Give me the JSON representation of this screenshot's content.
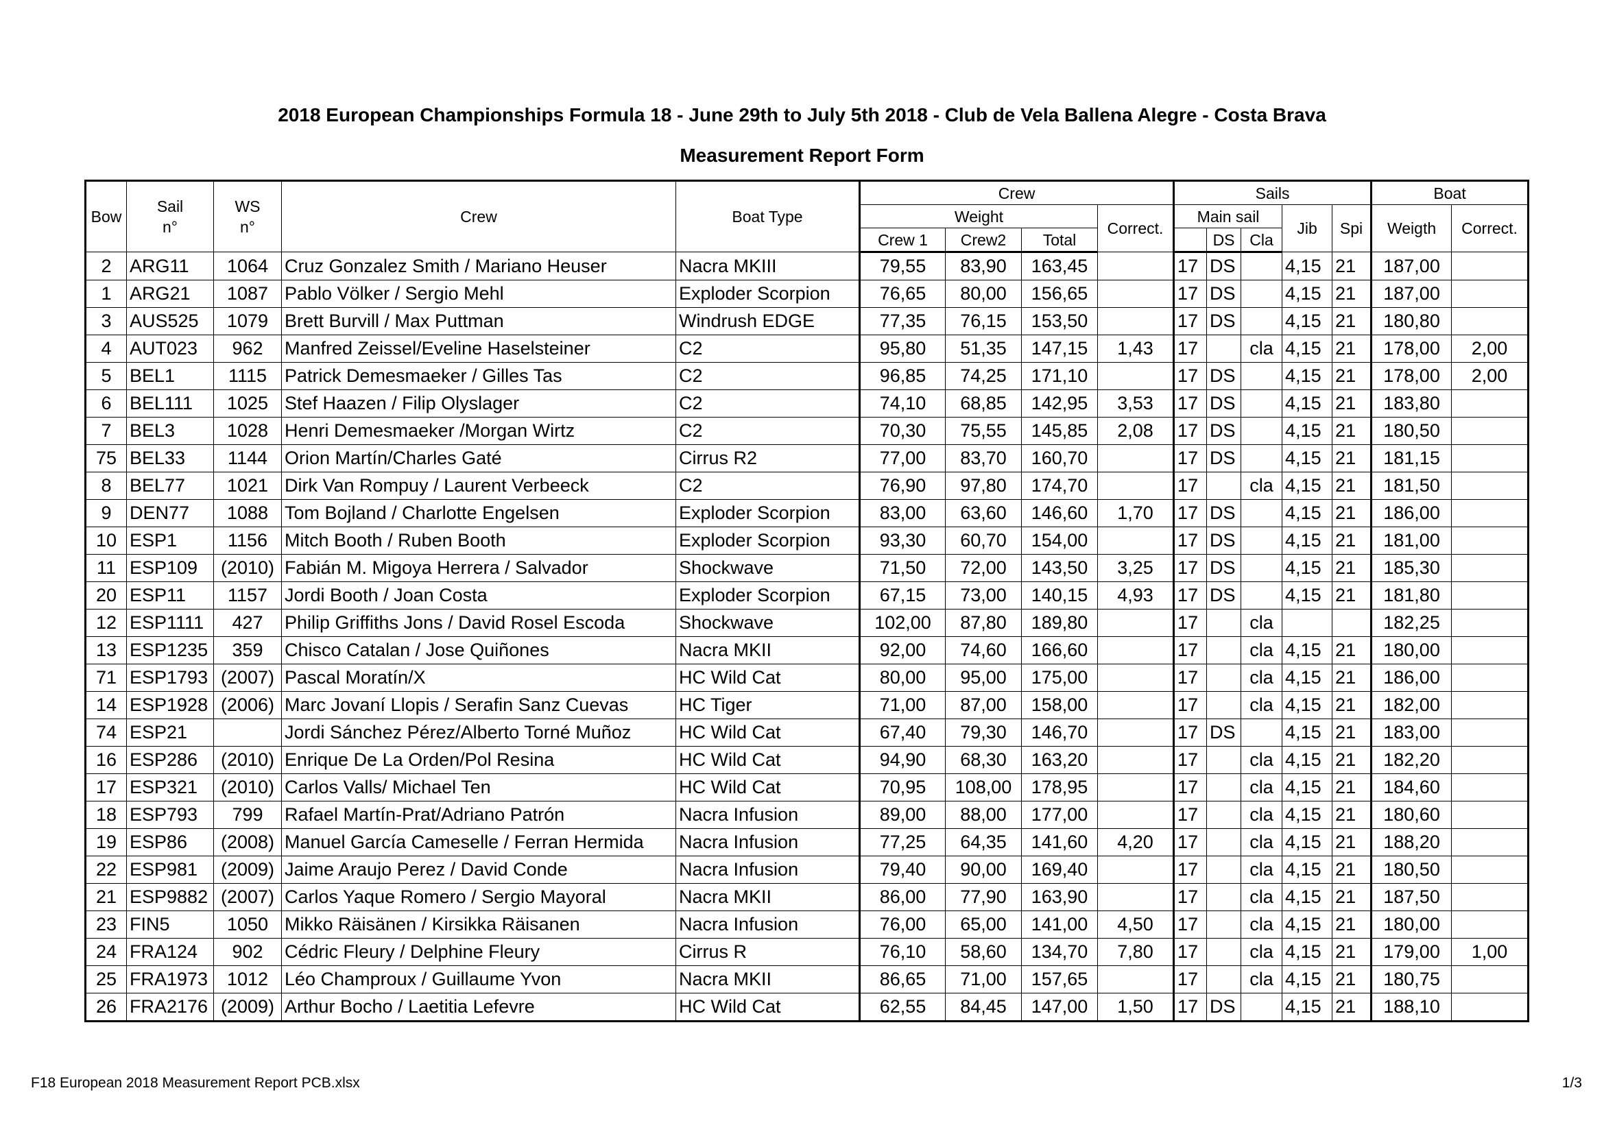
{
  "header": {
    "title": "2018 European Championships Formula 18 - June 29th to July 5th 2018 - Club de Vela Ballena Alegre - Costa Brava",
    "subtitle": "Measurement Report Form"
  },
  "table": {
    "header_rows": [
      [
        "Bow",
        "Sail\nn°",
        "WS\nn°",
        "Crew",
        "Boat Type",
        "Crew",
        "Sails",
        "Boat"
      ],
      [
        "Weight",
        "Correct.",
        "Main sail",
        "Jib",
        "Spi",
        "Weigth",
        "Correct."
      ],
      [
        "Crew 1",
        "Crew2",
        "Total",
        "DS",
        "Cla"
      ]
    ],
    "rows": [
      [
        "2",
        "ARG11",
        "1064",
        "Cruz Gonzalez Smith / Mariano Heuser",
        "Nacra MKIII",
        "79,55",
        "83,90",
        "163,45",
        null,
        "17",
        "DS",
        null,
        "4,15",
        "21",
        "187,00",
        null
      ],
      [
        "1",
        "ARG21",
        "1087",
        "Pablo Völker / Sergio Mehl",
        "Exploder Scorpion",
        "76,65",
        "80,00",
        "156,65",
        null,
        "17",
        "DS",
        null,
        "4,15",
        "21",
        "187,00",
        null
      ],
      [
        "3",
        "AUS525",
        "1079",
        "Brett Burvill / Max Puttman",
        "Windrush EDGE",
        "77,35",
        "76,15",
        "153,50",
        null,
        "17",
        "DS",
        null,
        "4,15",
        "21",
        "180,80",
        null
      ],
      [
        "4",
        "AUT023",
        "962",
        "Manfred Zeissel/Eveline Haselsteiner",
        "C2",
        "95,80",
        "51,35",
        "147,15",
        "1,43",
        "17",
        null,
        "cla",
        "4,15",
        "21",
        "178,00",
        "2,00"
      ],
      [
        "5",
        "BEL1",
        "1115",
        "Patrick Demesmaeker / Gilles Tas",
        "C2",
        "96,85",
        "74,25",
        "171,10",
        null,
        "17",
        "DS",
        null,
        "4,15",
        "21",
        "178,00",
        "2,00"
      ],
      [
        "6",
        "BEL111",
        "1025",
        "Stef Haazen / Filip Olyslager",
        "C2",
        "74,10",
        "68,85",
        "142,95",
        "3,53",
        "17",
        "DS",
        null,
        "4,15",
        "21",
        "183,80",
        null
      ],
      [
        "7",
        "BEL3",
        "1028",
        "Henri Demesmaeker /Morgan Wirtz",
        "C2",
        "70,30",
        "75,55",
        "145,85",
        "2,08",
        "17",
        "DS",
        null,
        "4,15",
        "21",
        "180,50",
        null
      ],
      [
        "75",
        "BEL33",
        "1144",
        "Orion Martín/Charles Gaté",
        "Cirrus R2",
        "77,00",
        "83,70",
        "160,70",
        null,
        "17",
        "DS",
        null,
        "4,15",
        "21",
        "181,15",
        null
      ],
      [
        "8",
        "BEL77",
        "1021",
        "Dirk Van Rompuy / Laurent Verbeeck",
        "C2",
        "76,90",
        "97,80",
        "174,70",
        null,
        "17",
        null,
        "cla",
        "4,15",
        "21",
        "181,50",
        null
      ],
      [
        "9",
        "DEN77",
        "1088",
        "Tom Bojland / Charlotte Engelsen",
        "Exploder Scorpion",
        "83,00",
        "63,60",
        "146,60",
        "1,70",
        "17",
        "DS",
        null,
        "4,15",
        "21",
        "186,00",
        null
      ],
      [
        "10",
        "ESP1",
        "1156",
        "Mitch Booth / Ruben Booth",
        "Exploder Scorpion",
        "93,30",
        "60,70",
        "154,00",
        null,
        "17",
        "DS",
        null,
        "4,15",
        "21",
        "181,00",
        null
      ],
      [
        "11",
        "ESP109",
        "(2010)",
        "Fabián M. Migoya Herrera / Salvador",
        "Shockwave",
        "71,50",
        "72,00",
        "143,50",
        "3,25",
        "17",
        "DS",
        null,
        "4,15",
        "21",
        "185,30",
        null
      ],
      [
        "20",
        "ESP11",
        "1157",
        "Jordi Booth / Joan Costa",
        "Exploder Scorpion",
        "67,15",
        "73,00",
        "140,15",
        "4,93",
        "17",
        "DS",
        null,
        "4,15",
        "21",
        "181,80",
        null
      ],
      [
        "12",
        "ESP1111",
        "427",
        "Philip Griffiths Jons / David Rosel Escoda",
        "Shockwave",
        "102,00",
        "87,80",
        "189,80",
        null,
        "17",
        null,
        "cla",
        null,
        null,
        "182,25",
        null
      ],
      [
        "13",
        "ESP1235",
        "359",
        "Chisco Catalan / Jose Quiñones",
        "Nacra MKII",
        "92,00",
        "74,60",
        "166,60",
        null,
        "17",
        null,
        "cla",
        "4,15",
        "21",
        "180,00",
        null
      ],
      [
        "71",
        "ESP1793",
        "(2007)",
        "Pascal Moratín/X",
        "HC Wild Cat",
        "80,00",
        "95,00",
        "175,00",
        null,
        "17",
        null,
        "cla",
        "4,15",
        "21",
        "186,00",
        null
      ],
      [
        "14",
        "ESP1928",
        "(2006)",
        "Marc Jovaní Llopis / Serafin Sanz Cuevas",
        "HC Tiger",
        "71,00",
        "87,00",
        "158,00",
        null,
        "17",
        null,
        "cla",
        "4,15",
        "21",
        "182,00",
        null
      ],
      [
        "74",
        "ESP21",
        null,
        "Jordi Sánchez Pérez/Alberto Torné Muñoz",
        "HC Wild Cat",
        "67,40",
        "79,30",
        "146,70",
        null,
        "17",
        "DS",
        null,
        "4,15",
        "21",
        "183,00",
        null
      ],
      [
        "16",
        "ESP286",
        "(2010)",
        "Enrique De La Orden/Pol Resina",
        "HC Wild Cat",
        "94,90",
        "68,30",
        "163,20",
        null,
        "17",
        null,
        "cla",
        "4,15",
        "21",
        "182,20",
        null
      ],
      [
        "17",
        "ESP321",
        "(2010)",
        "Carlos Valls/ Michael Ten",
        "HC Wild Cat",
        "70,95",
        "108,00",
        "178,95",
        null,
        "17",
        null,
        "cla",
        "4,15",
        "21",
        "184,60",
        null
      ],
      [
        "18",
        "ESP793",
        "799",
        "Rafael Martín-Prat/Adriano Patrón",
        "Nacra Infusion",
        "89,00",
        "88,00",
        "177,00",
        null,
        "17",
        null,
        "cla",
        "4,15",
        "21",
        "180,60",
        null
      ],
      [
        "19",
        "ESP86",
        "(2008)",
        "Manuel García Cameselle / Ferran Hermida",
        "Nacra Infusion",
        "77,25",
        "64,35",
        "141,60",
        "4,20",
        "17",
        null,
        "cla",
        "4,15",
        "21",
        "188,20",
        null
      ],
      [
        "22",
        "ESP981",
        "(2009)",
        "Jaime Araujo Perez / David Conde",
        "Nacra Infusion",
        "79,40",
        "90,00",
        "169,40",
        null,
        "17",
        null,
        "cla",
        "4,15",
        "21",
        "180,50",
        null
      ],
      [
        "21",
        "ESP9882",
        "(2007)",
        "Carlos Yaque Romero / Sergio Mayoral",
        "Nacra MKII",
        "86,00",
        "77,90",
        "163,90",
        null,
        "17",
        null,
        "cla",
        "4,15",
        "21",
        "187,50",
        null
      ],
      [
        "23",
        "FIN5",
        "1050",
        "Mikko Räisänen / Kirsikka Räisanen",
        "Nacra Infusion",
        "76,00",
        "65,00",
        "141,00",
        "4,50",
        "17",
        null,
        "cla",
        "4,15",
        "21",
        "180,00",
        null
      ],
      [
        "24",
        "FRA124",
        "902",
        "Cédric Fleury / Delphine Fleury",
        "Cirrus R",
        "76,10",
        "58,60",
        "134,70",
        "7,80",
        "17",
        null,
        "cla",
        "4,15",
        "21",
        "179,00",
        "1,00"
      ],
      [
        "25",
        "FRA1973",
        "1012",
        "Léo Champroux / Guillaume Yvon",
        "Nacra MKII",
        "86,65",
        "71,00",
        "157,65",
        null,
        "17",
        null,
        "cla",
        "4,15",
        "21",
        "180,75",
        null
      ],
      [
        "26",
        "FRA2176",
        "(2009)",
        "Arthur Bocho / Laetitia Lefevre",
        "HC Wild Cat",
        "62,55",
        "84,45",
        "147,00",
        "1,50",
        "17",
        "DS",
        null,
        "4,15",
        "21",
        "188,10",
        null
      ]
    ]
  },
  "footer": {
    "file": "F18 European 2018 Measurement Report PCB.xlsx",
    "page": "1/3"
  }
}
